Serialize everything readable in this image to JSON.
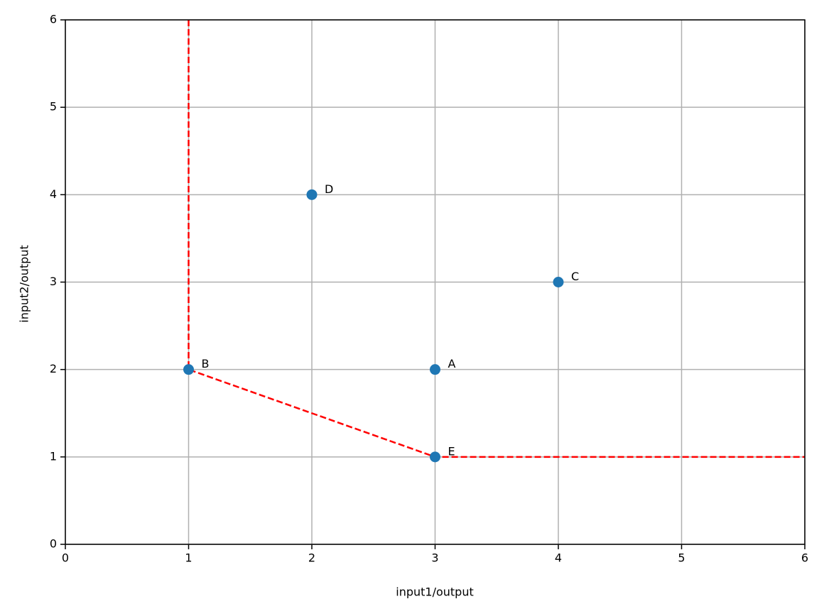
{
  "chart_data": {
    "type": "scatter",
    "xlabel": "input1/output",
    "ylabel": "input2/output",
    "xlim": [
      0,
      6
    ],
    "ylim": [
      0,
      6
    ],
    "xticks": [
      0,
      1,
      2,
      3,
      4,
      5,
      6
    ],
    "yticks": [
      0,
      1,
      2,
      3,
      4,
      5,
      6
    ],
    "grid": true,
    "series": [
      {
        "type": "scatter",
        "color": "#1f77b4",
        "x": [
          3,
          1,
          4,
          2,
          3
        ],
        "values": [
          2,
          2,
          3,
          4,
          1
        ],
        "labels": [
          "A",
          "B",
          "C",
          "D",
          "E"
        ]
      },
      {
        "type": "line",
        "color": "#ff0000",
        "dashed": true,
        "x": [
          1,
          1,
          3,
          6
        ],
        "values": [
          6,
          2,
          1,
          1
        ]
      }
    ]
  }
}
